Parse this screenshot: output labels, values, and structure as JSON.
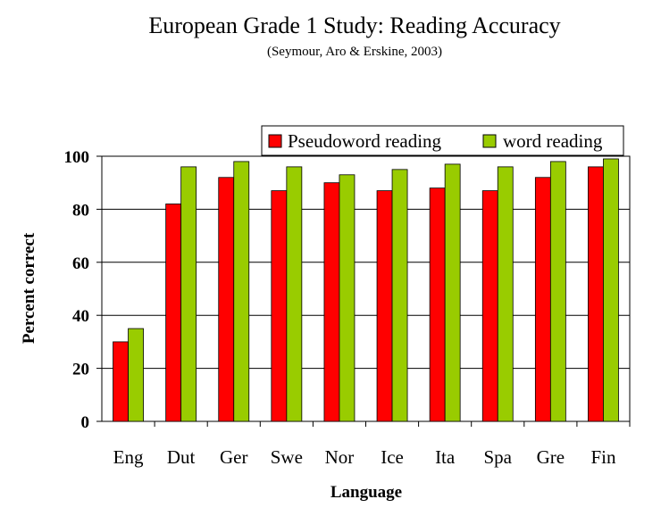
{
  "chart_data": {
    "type": "bar",
    "title": "European Grade 1 Study: Reading Accuracy",
    "subtitle": "(Seymour, Aro & Erskine, 2003)",
    "xlabel": "Language",
    "ylabel": "Percent correct",
    "ylim": [
      0,
      100
    ],
    "yticks": [
      "0",
      "20",
      "40",
      "60",
      "80",
      "100"
    ],
    "grid": true,
    "legend_position": "top-right",
    "categories": [
      "Eng",
      "Dut",
      "Ger",
      "Swe",
      "Nor",
      "Ice",
      "Ita",
      "Spa",
      "Gre",
      "Fin"
    ],
    "series": [
      {
        "name": "Pseudoword reading",
        "color": "#ff0000",
        "values": [
          30,
          82,
          92,
          87,
          90,
          87,
          88,
          87,
          92,
          96
        ]
      },
      {
        "name": "word reading",
        "color": "#99cc00",
        "values": [
          35,
          96,
          98,
          96,
          93,
          95,
          97,
          96,
          98,
          99
        ]
      }
    ]
  }
}
